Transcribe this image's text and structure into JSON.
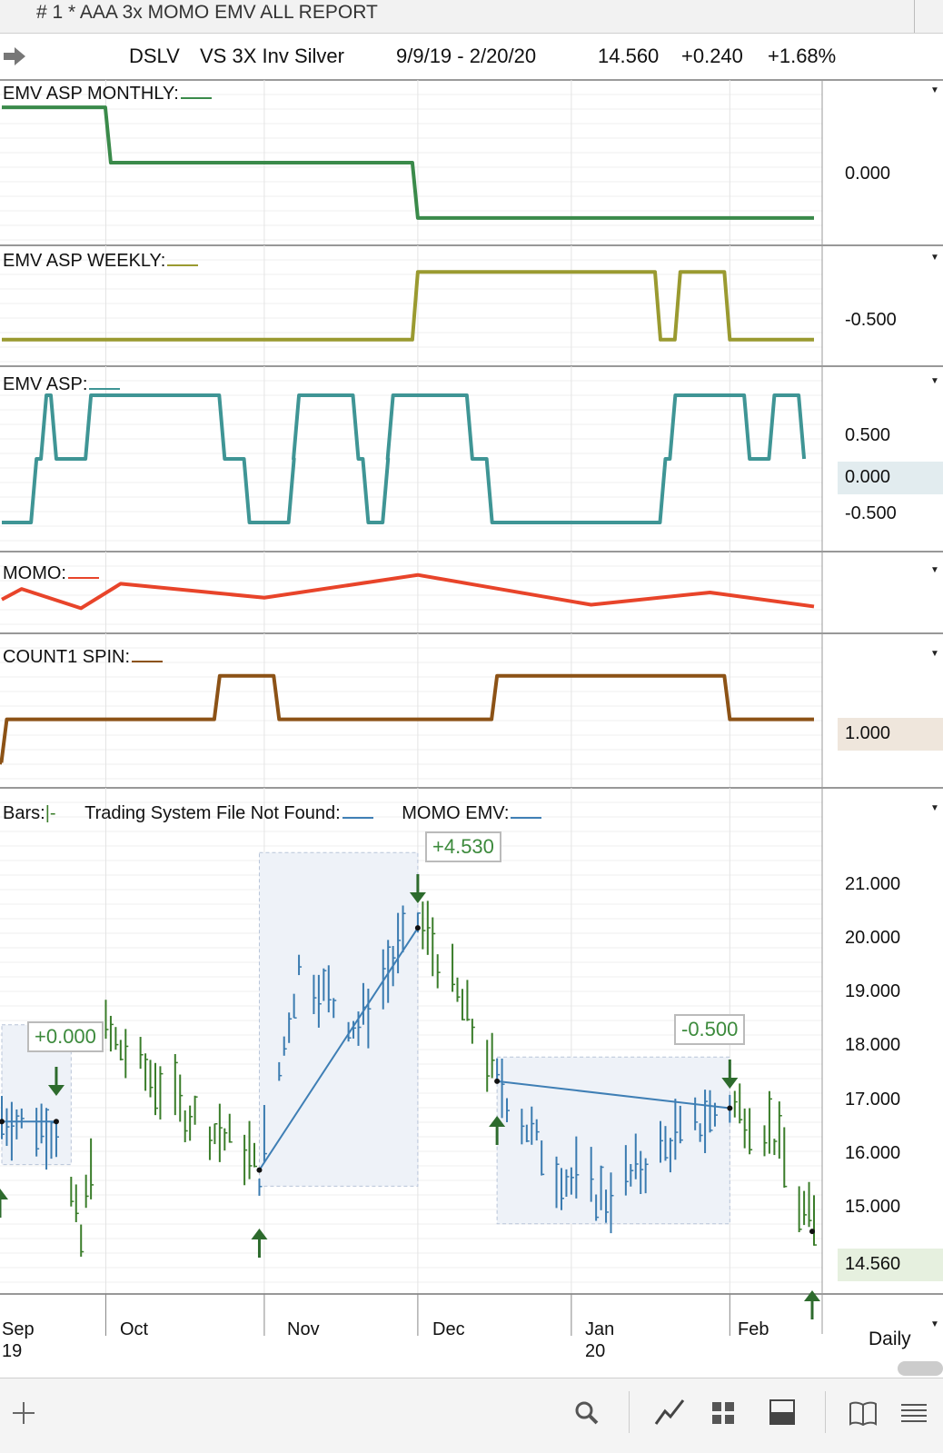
{
  "window": {
    "title": "#  1 * AAA 3x MOMO EMV ALL REPORT"
  },
  "header": {
    "symbol": "DSLV",
    "name": "VS 3X Inv Silver",
    "range": "9/9/19 - 2/20/20",
    "last": "14.560",
    "change": "+0.240",
    "change_pct": "+1.68%"
  },
  "colors": {
    "monthly": "#3a8a4a",
    "weekly": "#9a9a30",
    "asp": "#3f9595",
    "momo": "#e8442a",
    "count": "#8c5216",
    "up_bar": "#3a7d2a",
    "down_bar": "#3a7bb0",
    "trend_line": "#3f7fb5",
    "arrow": "#2d6b2d"
  },
  "panels": {
    "monthly": {
      "label": "EMV ASP MONTHLY:",
      "axis": [
        "0.000"
      ]
    },
    "weekly": {
      "label": "EMV ASP WEEKLY:",
      "axis": [
        "-0.500"
      ]
    },
    "asp": {
      "label": "EMV ASP:",
      "axis": [
        "0.500",
        "0.000",
        "-0.500"
      ],
      "current": "0.000"
    },
    "momo": {
      "label": "MOMO:"
    },
    "count": {
      "label": "COUNT1 SPIN:",
      "current": "1.000"
    },
    "price": {
      "bars_label": "Bars:",
      "tsf_label": "Trading System File Not Found:",
      "momo_emv_label": "MOMO EMV:",
      "axis": [
        "21.000",
        "20.000",
        "19.000",
        "18.000",
        "17.000",
        "16.000",
        "15.000"
      ],
      "current": "14.560"
    }
  },
  "annotations": [
    "+0.000",
    "+4.530",
    "-0.500"
  ],
  "dates": {
    "months": [
      "Sep",
      "Oct",
      "Nov",
      "Dec",
      "Jan",
      "Feb"
    ],
    "years": [
      "19",
      "20"
    ],
    "interval": "Daily"
  },
  "icons": [
    "plus-icon",
    "search-icon",
    "chart-style-icon",
    "layout-grid-icon",
    "panel-icon",
    "book-icon",
    "menu-icon"
  ],
  "chart_data": [
    {
      "type": "line",
      "name": "EMV ASP MONTHLY",
      "y_axis_ticks": [
        "0.000"
      ],
      "note": "step series",
      "values_by_date": [
        {
          "x": "2019-09-09",
          "y": 0.5
        },
        {
          "x": "2019-10-01",
          "y": 0.0
        },
        {
          "x": "2019-12-02",
          "y": -0.5
        },
        {
          "x": "2020-02-20",
          "y": -0.5
        }
      ]
    },
    {
      "type": "line",
      "name": "EMV ASP WEEKLY",
      "y_axis_ticks": [
        "-0.500"
      ],
      "values_by_date": [
        {
          "x": "2019-09-09",
          "y": -1.0
        },
        {
          "x": "2019-12-02",
          "y": -0.0
        },
        {
          "x": "2020-01-20",
          "y": -1.0
        },
        {
          "x": "2020-01-24",
          "y": 0.0
        },
        {
          "x": "2020-02-03",
          "y": -1.0
        },
        {
          "x": "2020-02-20",
          "y": -1.0
        }
      ]
    },
    {
      "type": "line",
      "name": "EMV ASP",
      "y_axis_ticks": [
        "0.500",
        "0.000",
        "-0.500"
      ],
      "values_by_date": [
        {
          "x": "2019-09-09",
          "y": -1.0
        },
        {
          "x": "2019-09-16",
          "y": 0.0
        },
        {
          "x": "2019-09-18",
          "y": 1.0
        },
        {
          "x": "2019-09-20",
          "y": 0.0
        },
        {
          "x": "2019-09-27",
          "y": 1.0
        },
        {
          "x": "2019-10-24",
          "y": 0.0
        },
        {
          "x": "2019-10-29",
          "y": -1.0
        },
        {
          "x": "2019-11-07",
          "y": 0.0
        },
        {
          "x": "2019-11-08",
          "y": 1.0
        },
        {
          "x": "2019-11-20",
          "y": 0.0
        },
        {
          "x": "2019-11-22",
          "y": -1.0
        },
        {
          "x": "2019-11-26",
          "y": 0.0
        },
        {
          "x": "2019-11-27",
          "y": 1.0
        },
        {
          "x": "2019-12-13",
          "y": 0.0
        },
        {
          "x": "2019-12-17",
          "y": -1.0
        },
        {
          "x": "2020-01-21",
          "y": 0.0
        },
        {
          "x": "2020-01-23",
          "y": 1.0
        },
        {
          "x": "2020-02-07",
          "y": 0.0
        },
        {
          "x": "2020-02-12",
          "y": 1.0
        },
        {
          "x": "2020-02-18",
          "y": 0.0
        }
      ]
    },
    {
      "type": "line",
      "name": "MOMO",
      "values_by_date": [
        {
          "x": "2019-09-09",
          "y": 0.3
        },
        {
          "x": "2019-09-13",
          "y": 0.6
        },
        {
          "x": "2019-09-25",
          "y": 0.05
        },
        {
          "x": "2019-10-03",
          "y": 0.75
        },
        {
          "x": "2019-11-01",
          "y": 0.35
        },
        {
          "x": "2019-12-02",
          "y": 1.0
        },
        {
          "x": "2020-01-06",
          "y": 0.15
        },
        {
          "x": "2020-01-30",
          "y": 0.5
        },
        {
          "x": "2020-02-20",
          "y": 0.1
        }
      ]
    },
    {
      "type": "line",
      "name": "COUNT1 SPIN",
      "y_axis_ticks": [
        "1.000"
      ],
      "values_by_date": [
        {
          "x": "2019-09-09",
          "y": 0.0
        },
        {
          "x": "2019-09-10",
          "y": 1.0
        },
        {
          "x": "2019-10-23",
          "y": 2.0
        },
        {
          "x": "2019-11-04",
          "y": 1.0
        },
        {
          "x": "2019-12-18",
          "y": 2.0
        },
        {
          "x": "2020-02-03",
          "y": 1.0
        },
        {
          "x": "2020-02-20",
          "y": 1.0
        }
      ]
    },
    {
      "type": "bar",
      "name": "DSLV daily",
      "y_axis_ticks": [
        "21.000",
        "20.000",
        "19.000",
        "18.000",
        "17.000",
        "16.000",
        "15.000"
      ],
      "ylim": [
        13.7,
        22.5
      ],
      "trades": [
        {
          "label": "+0.000",
          "entry": {
            "x": "2019-09-09",
            "y": 16.6
          },
          "exit": {
            "x": "2019-09-20",
            "y": 16.6
          }
        },
        {
          "label": "+4.530",
          "entry": {
            "x": "2019-10-31",
            "y": 15.7
          },
          "exit": {
            "x": "2019-12-02",
            "y": 20.2
          }
        },
        {
          "label": "-0.500",
          "entry": {
            "x": "2019-12-18",
            "y": 17.35
          },
          "exit": {
            "x": "2020-02-03",
            "y": 16.85
          }
        }
      ],
      "last_price": 14.56
    }
  ]
}
